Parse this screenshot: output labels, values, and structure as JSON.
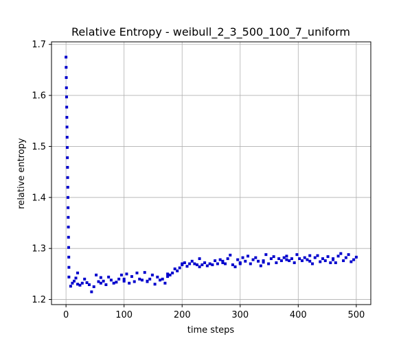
{
  "chart_data": {
    "type": "scatter",
    "title": "Relative Entropy - weibull_2_3_500_100_7_uniform",
    "xlabel": "time steps",
    "ylabel": "relative entropy",
    "xlim": [
      -25,
      525
    ],
    "ylim": [
      1.19,
      1.705
    ],
    "xticks": [
      0,
      100,
      200,
      300,
      400,
      500
    ],
    "yticks": [
      1.2,
      1.3,
      1.4,
      1.5,
      1.6,
      1.7
    ],
    "xtick_labels": [
      "0",
      "100",
      "200",
      "300",
      "400",
      "500"
    ],
    "ytick_labels": [
      "1.2",
      "1.3",
      "1.4",
      "1.5",
      "1.6",
      "1.7"
    ],
    "grid": true,
    "marker_color": "#0000cc",
    "segments": [
      {
        "x0": 0,
        "x1": 5,
        "points": [
          1.675,
          1.655,
          1.635,
          1.615,
          1.597,
          1.577,
          1.557,
          1.538,
          1.518,
          1.498,
          1.478,
          1.459,
          1.439,
          1.42,
          1.4,
          1.38,
          1.361,
          1.342,
          1.322,
          1.302,
          1.283,
          1.263
        ]
      },
      {
        "x0": 5,
        "x1": 20,
        "points": [
          1.244,
          1.226,
          1.232,
          1.236,
          1.242,
          1.252
        ]
      },
      {
        "x0": 20,
        "x1": 60,
        "points": [
          1.23,
          1.228,
          1.232,
          1.24,
          1.233,
          1.229,
          1.215,
          1.225,
          1.248,
          1.235,
          1.232
        ]
      },
      {
        "x0": 60,
        "x1": 100,
        "points": [
          1.243,
          1.236,
          1.229,
          1.244,
          1.238,
          1.232,
          1.234,
          1.24,
          1.248,
          1.236
        ]
      },
      {
        "x0": 100,
        "x1": 140,
        "points": [
          1.24,
          1.25,
          1.232,
          1.245,
          1.235,
          1.252,
          1.24,
          1.238,
          1.253,
          1.236
        ]
      },
      {
        "x0": 140,
        "x1": 175,
        "points": [
          1.235,
          1.24,
          1.248,
          1.23,
          1.244,
          1.238,
          1.24,
          1.232,
          1.25
        ]
      },
      {
        "x0": 175,
        "x1": 200,
        "points": [
          1.245,
          1.248,
          1.252,
          1.26,
          1.256,
          1.262,
          1.27
        ]
      },
      {
        "x0": 200,
        "x1": 230,
        "points": [
          1.268,
          1.272,
          1.265,
          1.27,
          1.275,
          1.27,
          1.268,
          1.28
        ]
      },
      {
        "x0": 230,
        "x1": 270,
        "points": [
          1.264,
          1.268,
          1.272,
          1.266,
          1.27,
          1.268,
          1.276,
          1.27,
          1.278,
          1.272
        ]
      },
      {
        "x0": 270,
        "x1": 300,
        "points": [
          1.275,
          1.27,
          1.28,
          1.287,
          1.268,
          1.264,
          1.278,
          1.272
        ]
      },
      {
        "x0": 300,
        "x1": 340,
        "points": [
          1.27,
          1.282,
          1.275,
          1.285,
          1.27,
          1.278,
          1.282,
          1.275,
          1.266,
          1.273
        ]
      },
      {
        "x0": 340,
        "x1": 380,
        "points": [
          1.276,
          1.288,
          1.27,
          1.28,
          1.284,
          1.272,
          1.28,
          1.276,
          1.282,
          1.278
        ]
      },
      {
        "x0": 380,
        "x1": 420,
        "points": [
          1.285,
          1.276,
          1.28,
          1.272,
          1.288,
          1.28,
          1.276,
          1.282,
          1.278,
          1.286
        ]
      },
      {
        "x0": 420,
        "x1": 460,
        "points": [
          1.275,
          1.27,
          1.282,
          1.286,
          1.274,
          1.28,
          1.276,
          1.284,
          1.272,
          1.278
        ]
      },
      {
        "x0": 460,
        "x1": 500,
        "points": [
          1.28,
          1.272,
          1.285,
          1.29,
          1.276,
          1.282,
          1.288,
          1.274,
          1.278,
          1.283
        ]
      }
    ]
  }
}
